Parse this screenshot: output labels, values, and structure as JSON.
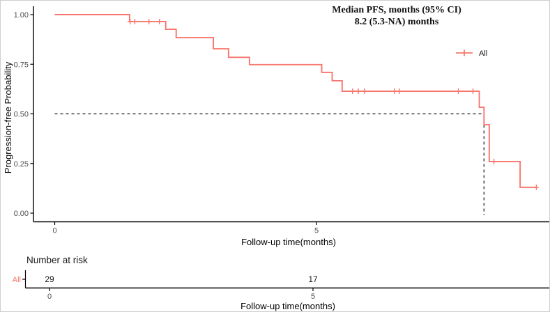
{
  "figure": {
    "title_line1": "Median PFS, months (95% CI)",
    "title_line2": "8.2 (5.3-NA) months"
  },
  "legend": {
    "label": "All"
  },
  "axes": {
    "y_label": "Progression-free Probability",
    "x_label": "Follow-up time(months)",
    "y_ticks": [
      "0.00",
      "0.25",
      "0.50",
      "0.75",
      "1.00"
    ],
    "x_ticks": [
      "0",
      "5"
    ]
  },
  "risk_table": {
    "heading": "Number at risk",
    "row_label": "All",
    "counts": [
      {
        "time": 0,
        "n": "29"
      },
      {
        "time": 5,
        "n": "17"
      }
    ],
    "x_ticks": [
      "0",
      "5"
    ],
    "x_label": "Follow-up time(months)"
  },
  "colors": {
    "curve": "#F8766D",
    "dashed_reference": "#1a1a1a",
    "axis_line": "#000000",
    "tick_text": "#4d4d4d"
  },
  "chart_data": {
    "type": "line",
    "subtype": "kaplan-meier-step",
    "title": "Median PFS, months (95% CI) 8.2 (5.3-NA) months",
    "xlabel": "Follow-up time(months)",
    "ylabel": "Progression-free Probability",
    "xlim": [
      -0.4,
      9.47
    ],
    "ylim": [
      0,
      1
    ],
    "x_tick_values": [
      0,
      5
    ],
    "y_tick_values": [
      0,
      0.25,
      0.5,
      0.75,
      1
    ],
    "grid": false,
    "legend_position": "right-inside",
    "median_pfs_months": 8.2,
    "ci_95_lower": 5.3,
    "ci_95_upper": "NA",
    "reference_lines": {
      "horizontal_probability": 0.5,
      "vertical_time": 8.2
    },
    "series": [
      {
        "name": "All",
        "steps": [
          {
            "p": 1.0,
            "to": 1.43
          },
          {
            "p": 0.965,
            "to": 2.12
          },
          {
            "p": 0.926,
            "to": 2.32
          },
          {
            "p": 0.884,
            "to": 3.03
          },
          {
            "p": 0.828,
            "to": 3.32
          },
          {
            "p": 0.785,
            "to": 3.72
          },
          {
            "p": 0.748,
            "to": 5.1
          },
          {
            "p": 0.709,
            "to": 5.3
          },
          {
            "p": 0.667,
            "to": 5.49
          },
          {
            "p": 0.614,
            "to": 8.11
          },
          {
            "p": 0.533,
            "to": 8.2
          },
          {
            "p": 0.446,
            "to": 8.3
          },
          {
            "p": 0.26,
            "to": 8.89
          },
          {
            "p": 0.13,
            "to": 9.2
          }
        ],
        "censor_marks": [
          {
            "t": 1.44,
            "p": 0.965
          },
          {
            "t": 1.53,
            "p": 0.965
          },
          {
            "t": 1.8,
            "p": 0.965
          },
          {
            "t": 2.0,
            "p": 0.965
          },
          {
            "t": 5.69,
            "p": 0.614
          },
          {
            "t": 5.8,
            "p": 0.614
          },
          {
            "t": 5.92,
            "p": 0.614
          },
          {
            "t": 6.49,
            "p": 0.614
          },
          {
            "t": 6.58,
            "p": 0.614
          },
          {
            "t": 7.71,
            "p": 0.614
          },
          {
            "t": 7.99,
            "p": 0.614
          },
          {
            "t": 8.39,
            "p": 0.26
          },
          {
            "t": 9.2,
            "p": 0.13
          }
        ]
      }
    ],
    "number_at_risk": {
      "heading": "Number at risk",
      "rows": [
        {
          "name": "All",
          "times": [
            0,
            5
          ],
          "counts": [
            29,
            17
          ]
        }
      ]
    }
  }
}
